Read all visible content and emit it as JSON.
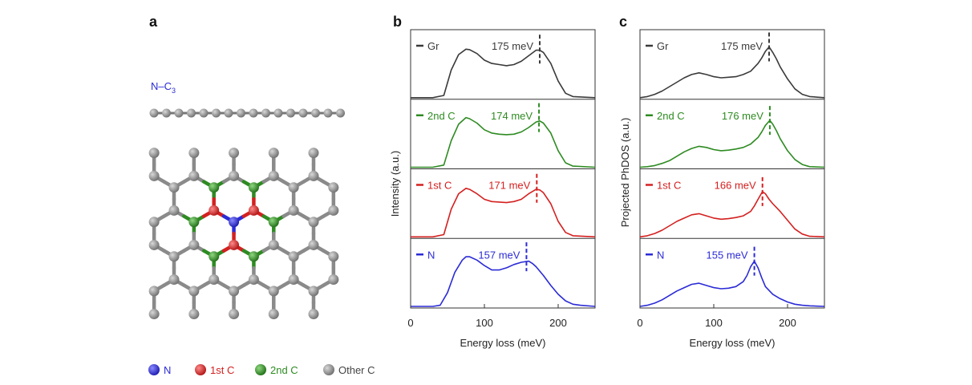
{
  "panels": {
    "a": {
      "letter": "a",
      "side_label_main": "N–C",
      "side_label_sub": "3",
      "legend": [
        {
          "label": "N",
          "color": "#2b2bd6"
        },
        {
          "label": "1st C",
          "color": "#d42020"
        },
        {
          "label": "2nd C",
          "color": "#2e8b22"
        },
        {
          "label": "Other C",
          "color": "#8a8a8a"
        }
      ]
    },
    "b": {
      "letter": "b"
    },
    "c": {
      "letter": "c"
    }
  },
  "colors": {
    "Gr": "#3a3a3a",
    "2nd C": "#2e8b22",
    "1st C": "#d42020",
    "N": "#2b2bd6"
  },
  "chart_data": [
    {
      "panel": "b",
      "type": "line",
      "xlabel": "Energy loss (meV)",
      "ylabel": "Intensity (a.u.)",
      "xlim": [
        0,
        250
      ],
      "xticks": [
        0,
        100,
        200
      ],
      "series": [
        {
          "name": "Gr",
          "peak_label": "175 meV",
          "peak": 175,
          "x": [
            0,
            30,
            45,
            55,
            65,
            75,
            80,
            90,
            100,
            110,
            120,
            130,
            140,
            150,
            160,
            170,
            175,
            180,
            190,
            200,
            210,
            220,
            250
          ],
          "y": [
            0,
            0,
            0.04,
            0.5,
            0.78,
            0.88,
            0.87,
            0.8,
            0.68,
            0.62,
            0.6,
            0.58,
            0.6,
            0.66,
            0.76,
            0.86,
            0.86,
            0.82,
            0.62,
            0.3,
            0.08,
            0.02,
            0
          ]
        },
        {
          "name": "2nd C",
          "peak_label": "174 meV",
          "peak": 174,
          "x": [
            0,
            30,
            45,
            55,
            65,
            75,
            80,
            90,
            100,
            110,
            120,
            130,
            140,
            150,
            160,
            170,
            175,
            180,
            190,
            200,
            210,
            220,
            250
          ],
          "y": [
            0,
            0,
            0.04,
            0.48,
            0.78,
            0.9,
            0.88,
            0.8,
            0.68,
            0.62,
            0.6,
            0.59,
            0.6,
            0.64,
            0.72,
            0.82,
            0.84,
            0.8,
            0.62,
            0.3,
            0.08,
            0.02,
            0
          ]
        },
        {
          "name": "1st C",
          "peak_label": "171 meV",
          "peak": 171,
          "x": [
            0,
            30,
            45,
            55,
            65,
            75,
            80,
            90,
            100,
            110,
            120,
            130,
            140,
            150,
            160,
            170,
            175,
            180,
            190,
            200,
            210,
            220,
            250
          ],
          "y": [
            0,
            0,
            0.04,
            0.5,
            0.78,
            0.88,
            0.86,
            0.78,
            0.68,
            0.64,
            0.63,
            0.62,
            0.64,
            0.68,
            0.78,
            0.86,
            0.85,
            0.8,
            0.6,
            0.28,
            0.08,
            0.02,
            0
          ]
        },
        {
          "name": "N",
          "peak_label": "157 meV",
          "peak": 157,
          "x": [
            0,
            30,
            40,
            50,
            60,
            70,
            75,
            80,
            90,
            100,
            110,
            120,
            130,
            140,
            150,
            160,
            165,
            170,
            180,
            190,
            200,
            210,
            220,
            230,
            250
          ],
          "y": [
            0,
            0,
            0.02,
            0.25,
            0.62,
            0.84,
            0.9,
            0.9,
            0.84,
            0.74,
            0.66,
            0.66,
            0.7,
            0.76,
            0.8,
            0.82,
            0.78,
            0.72,
            0.56,
            0.38,
            0.22,
            0.1,
            0.04,
            0.02,
            0
          ]
        }
      ]
    },
    {
      "panel": "c",
      "type": "line",
      "xlabel": "Energy loss (meV)",
      "ylabel": "Projected PhDOS (a.u.)",
      "xlim": [
        0,
        250
      ],
      "xticks": [
        0,
        100,
        200
      ],
      "series": [
        {
          "name": "Gr",
          "peak_label": "175 meV",
          "peak": 175,
          "x": [
            0,
            10,
            20,
            30,
            40,
            50,
            60,
            70,
            80,
            90,
            100,
            110,
            120,
            130,
            140,
            150,
            160,
            165,
            170,
            175,
            180,
            185,
            190,
            200,
            210,
            220,
            230,
            250
          ],
          "y": [
            0,
            0.02,
            0.06,
            0.12,
            0.2,
            0.28,
            0.36,
            0.42,
            0.45,
            0.42,
            0.38,
            0.36,
            0.37,
            0.38,
            0.42,
            0.48,
            0.62,
            0.72,
            0.84,
            0.92,
            0.82,
            0.7,
            0.56,
            0.34,
            0.16,
            0.06,
            0.02,
            0
          ]
        },
        {
          "name": "2nd C",
          "peak_label": "176 meV",
          "peak": 176,
          "x": [
            0,
            10,
            20,
            30,
            40,
            50,
            60,
            70,
            80,
            90,
            100,
            110,
            120,
            130,
            140,
            150,
            160,
            165,
            170,
            176,
            180,
            185,
            190,
            200,
            210,
            220,
            230,
            250
          ],
          "y": [
            0,
            0.01,
            0.03,
            0.07,
            0.12,
            0.2,
            0.28,
            0.34,
            0.38,
            0.36,
            0.32,
            0.3,
            0.31,
            0.33,
            0.36,
            0.42,
            0.54,
            0.64,
            0.76,
            0.85,
            0.78,
            0.66,
            0.52,
            0.3,
            0.14,
            0.05,
            0.01,
            0
          ]
        },
        {
          "name": "1st C",
          "peak_label": "166 meV",
          "peak": 166,
          "x": [
            0,
            10,
            20,
            30,
            40,
            50,
            60,
            70,
            80,
            90,
            100,
            110,
            120,
            130,
            140,
            150,
            155,
            160,
            166,
            170,
            175,
            180,
            190,
            200,
            210,
            220,
            230,
            250
          ],
          "y": [
            0,
            0.02,
            0.06,
            0.12,
            0.2,
            0.28,
            0.34,
            0.4,
            0.42,
            0.38,
            0.34,
            0.32,
            0.33,
            0.35,
            0.38,
            0.46,
            0.56,
            0.68,
            0.82,
            0.78,
            0.68,
            0.6,
            0.46,
            0.3,
            0.14,
            0.05,
            0.01,
            0
          ]
        },
        {
          "name": "N",
          "peak_label": "155 meV",
          "peak": 155,
          "x": [
            0,
            10,
            20,
            30,
            40,
            50,
            60,
            70,
            80,
            90,
            100,
            110,
            120,
            130,
            140,
            145,
            150,
            155,
            160,
            165,
            170,
            180,
            190,
            200,
            210,
            220,
            230,
            250
          ],
          "y": [
            0,
            0.02,
            0.06,
            0.12,
            0.2,
            0.28,
            0.34,
            0.4,
            0.42,
            0.38,
            0.34,
            0.32,
            0.33,
            0.36,
            0.45,
            0.56,
            0.72,
            0.82,
            0.7,
            0.52,
            0.36,
            0.22,
            0.14,
            0.08,
            0.04,
            0.02,
            0.01,
            0
          ]
        }
      ]
    }
  ]
}
